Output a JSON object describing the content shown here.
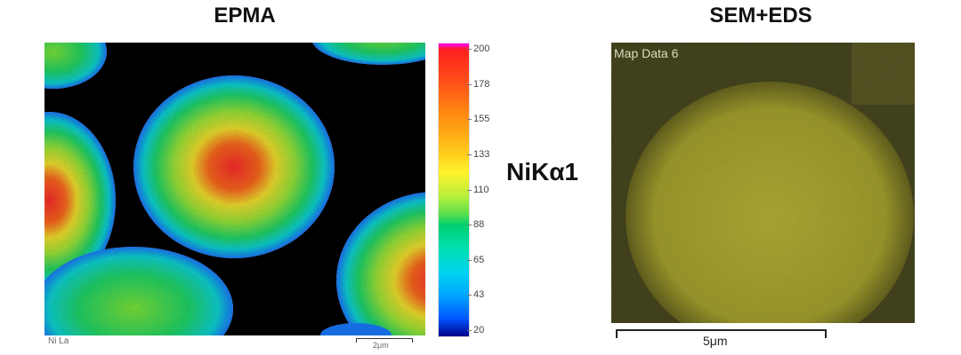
{
  "titles": {
    "left": "EPMA",
    "right": "SEM+EDS"
  },
  "epma": {
    "corner_label": "Ni La",
    "scale_label": "2μm",
    "colorbar_ticks": [
      "200",
      "178",
      "155",
      "133",
      "110",
      "88",
      "65",
      "43",
      "20"
    ]
  },
  "element_label": "NiKα1",
  "sem": {
    "map_label": "Map Data 6",
    "scale_label": "5μm"
  },
  "colors": {
    "epma_background": "#000000",
    "sem_background": "#353519",
    "sem_particle": "#a9a531"
  }
}
